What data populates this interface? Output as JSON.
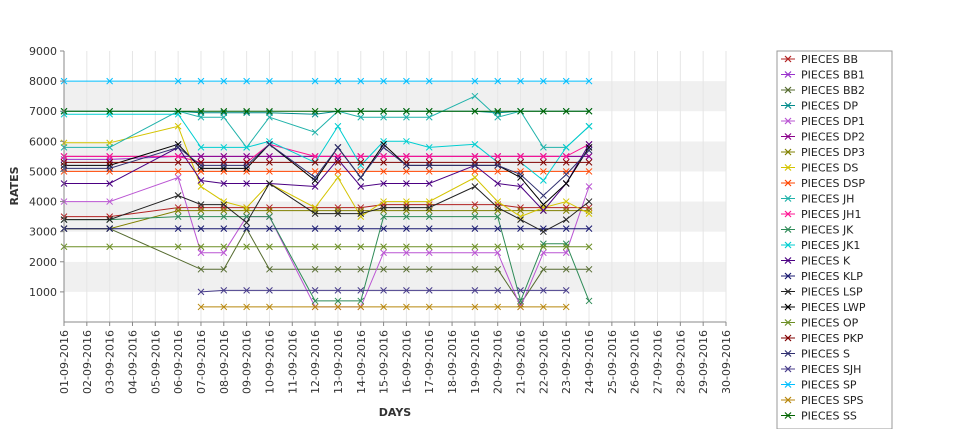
{
  "chart_data": {
    "type": "line",
    "xlabel": "DAYS",
    "ylabel": "RATES",
    "ylim": [
      0,
      9000
    ],
    "yticks": [
      1000,
      2000,
      3000,
      4000,
      5000,
      6000,
      7000,
      8000,
      9000
    ],
    "grid": "alternating horizontal bands",
    "legend_position": "right",
    "categories": [
      "01-09-2016",
      "02-09-2016",
      "03-09-2016",
      "04-09-2016",
      "05-09-2016",
      "06-09-2016",
      "07-09-2016",
      "08-09-2016",
      "09-09-2016",
      "10-09-2016",
      "11-09-2016",
      "12-09-2016",
      "13-09-2016",
      "14-09-2016",
      "15-09-2016",
      "16-09-2016",
      "17-09-2016",
      "18-09-2016",
      "19-09-2016",
      "20-09-2016",
      "21-09-2016",
      "22-09-2016",
      "23-09-2016",
      "24-09-2016",
      "25-09-2016",
      "26-09-2016",
      "27-09-2016",
      "28-09-2016",
      "29-09-2016",
      "30-09-2016"
    ],
    "series": [
      {
        "name": "PIECES BB",
        "color": "#b22222",
        "x": [
          1,
          3,
          6,
          7,
          8,
          9,
          10,
          12,
          13,
          14,
          15,
          16,
          17,
          19,
          20,
          21,
          22,
          23,
          24
        ],
        "values": [
          3500,
          3500,
          3800,
          3800,
          3800,
          3800,
          3800,
          3800,
          3800,
          3800,
          3900,
          3900,
          3900,
          3900,
          3900,
          3800,
          3800,
          3800,
          3800
        ]
      },
      {
        "name": "PIECES BB1",
        "color": "#9932cc",
        "x": [
          1,
          3,
          6,
          7,
          8,
          9,
          10,
          12,
          13,
          14,
          15,
          16,
          17,
          19,
          20,
          21,
          22,
          23,
          24
        ],
        "values": [
          5400,
          5400,
          5500,
          5500,
          5500,
          5500,
          5500,
          5500,
          5500,
          5500,
          5500,
          5500,
          5500,
          5500,
          5500,
          5500,
          5500,
          5500,
          5500
        ]
      },
      {
        "name": "PIECES BB2",
        "color": "#556b2f",
        "x": [
          1,
          3,
          7,
          8,
          9,
          10,
          12,
          13,
          14,
          15,
          16,
          17,
          19,
          20,
          21,
          22,
          23,
          24
        ],
        "values": [
          3100,
          3100,
          1750,
          1750,
          3100,
          1750,
          1750,
          1750,
          1750,
          1750,
          1750,
          1750,
          1750,
          1750,
          600,
          1750,
          1750,
          1750
        ]
      },
      {
        "name": "PIECES DP",
        "color": "#008b8b",
        "x": [
          1,
          3,
          6,
          7,
          8,
          9,
          10,
          12,
          13,
          14,
          15,
          16,
          17,
          19,
          20,
          21,
          22,
          23,
          24
        ],
        "values": [
          7000,
          7000,
          7000,
          6950,
          6950,
          6950,
          6950,
          6900,
          7000,
          7000,
          7000,
          7000,
          7000,
          7000,
          6950,
          7000,
          7000,
          7000,
          7000
        ]
      },
      {
        "name": "PIECES DP1",
        "color": "#ba55d3",
        "x": [
          1,
          3,
          6,
          7,
          8,
          9,
          10,
          12,
          13,
          14,
          15,
          16,
          17,
          19,
          20,
          21,
          22,
          23,
          24
        ],
        "values": [
          4000,
          4000,
          4800,
          2300,
          2300,
          3500,
          3500,
          500,
          500,
          500,
          2300,
          2300,
          2300,
          2300,
          2300,
          500,
          2300,
          2300,
          4500
        ]
      },
      {
        "name": "PIECES DP2",
        "color": "#8b008b",
        "x": [
          1,
          3,
          6,
          7,
          8,
          9,
          10,
          12,
          13,
          14,
          15,
          16,
          17,
          19,
          20,
          21,
          22,
          23,
          24
        ],
        "values": [
          5500,
          5500,
          5500,
          5500,
          5500,
          5500,
          5500,
          5500,
          5500,
          5500,
          5500,
          5500,
          5500,
          5500,
          5500,
          5500,
          5500,
          5500,
          5500
        ]
      },
      {
        "name": "PIECES DP3",
        "color": "#808000",
        "x": [
          1,
          3,
          6,
          7,
          8,
          9,
          10,
          12,
          13,
          14,
          15,
          16,
          17,
          19,
          20,
          21,
          22,
          23,
          24
        ],
        "values": [
          3100,
          3100,
          3700,
          3700,
          3700,
          3700,
          3700,
          3700,
          3700,
          3700,
          3700,
          3700,
          3700,
          3700,
          3700,
          3700,
          3700,
          3700,
          3700
        ]
      },
      {
        "name": "PIECES DS",
        "color": "#d4c400",
        "x": [
          1,
          3,
          6,
          7,
          8,
          9,
          10,
          12,
          13,
          14,
          15,
          16,
          17,
          19,
          20,
          21,
          22,
          23,
          24
        ],
        "values": [
          5950,
          5950,
          6500,
          4500,
          4000,
          3800,
          4600,
          3800,
          4800,
          3500,
          4000,
          4000,
          4000,
          4800,
          4000,
          3500,
          3800,
          4000,
          3600
        ]
      },
      {
        "name": "PIECES DSP",
        "color": "#ff4500",
        "x": [
          1,
          3,
          6,
          7,
          8,
          9,
          10,
          12,
          13,
          14,
          15,
          16,
          17,
          19,
          20,
          21,
          22,
          23,
          24
        ],
        "values": [
          5000,
          5000,
          5000,
          5000,
          5000,
          5000,
          5000,
          5000,
          5000,
          5000,
          5000,
          5000,
          5000,
          5000,
          5000,
          5000,
          5000,
          5000,
          5000
        ]
      },
      {
        "name": "PIECES JH",
        "color": "#20b2aa",
        "x": [
          1,
          3,
          6,
          7,
          8,
          9,
          10,
          12,
          13,
          14,
          15,
          16,
          17,
          19,
          20,
          21,
          22,
          23,
          24
        ],
        "values": [
          5800,
          5800,
          7000,
          6800,
          6800,
          5800,
          6800,
          6300,
          7000,
          6800,
          6800,
          6800,
          6800,
          7500,
          6800,
          7000,
          5800,
          5800,
          6500
        ]
      },
      {
        "name": "PIECES JH1",
        "color": "#ff1493",
        "x": [
          1,
          3,
          6,
          7,
          8,
          9,
          10,
          12,
          13,
          14,
          15,
          16,
          17,
          19,
          20,
          21,
          22,
          23,
          24
        ],
        "values": [
          5500,
          5500,
          5500,
          5300,
          5300,
          5300,
          5900,
          5500,
          5500,
          5500,
          5500,
          5500,
          5500,
          5500,
          5500,
          5500,
          5500,
          5500,
          5900
        ]
      },
      {
        "name": "PIECES JK",
        "color": "#2e8b57",
        "x": [
          1,
          3,
          6,
          7,
          8,
          9,
          10,
          12,
          13,
          14,
          15,
          16,
          17,
          19,
          20,
          21,
          22,
          23,
          24
        ],
        "values": [
          3400,
          3400,
          3500,
          3500,
          3500,
          3500,
          3500,
          700,
          700,
          700,
          3500,
          3500,
          3500,
          3500,
          3500,
          700,
          2600,
          2600,
          700
        ]
      },
      {
        "name": "PIECES JK1",
        "color": "#00ced1",
        "x": [
          1,
          3,
          6,
          7,
          8,
          9,
          10,
          12,
          13,
          14,
          15,
          16,
          17,
          19,
          20,
          21,
          22,
          23,
          24
        ],
        "values": [
          6900,
          6900,
          6900,
          5800,
          5800,
          5800,
          6000,
          5300,
          6500,
          5200,
          6000,
          6000,
          5800,
          5900,
          5300,
          5300,
          4700,
          5800,
          6500
        ]
      },
      {
        "name": "PIECES K",
        "color": "#4b0082",
        "x": [
          1,
          3,
          6,
          7,
          8,
          9,
          10,
          12,
          13,
          14,
          15,
          16,
          17,
          19,
          20,
          21,
          22,
          23,
          24
        ],
        "values": [
          4600,
          4600,
          5800,
          4700,
          4600,
          4600,
          4600,
          4500,
          5400,
          4500,
          4600,
          4600,
          4600,
          5200,
          4600,
          4500,
          3700,
          4600,
          5900
        ]
      },
      {
        "name": "PIECES KLP",
        "color": "#191970",
        "x": [
          1,
          3,
          6,
          7,
          8,
          9,
          10,
          12,
          13,
          14,
          15,
          16,
          17,
          19,
          20,
          21,
          22,
          23,
          24
        ],
        "values": [
          3100,
          3100,
          3100,
          3100,
          3100,
          3100,
          3100,
          3100,
          3100,
          3100,
          3100,
          3100,
          3100,
          3100,
          3100,
          3100,
          3100,
          3100,
          3100
        ]
      },
      {
        "name": "PIECES LSP",
        "color": "#222222",
        "x": [
          1,
          3,
          6,
          7,
          8,
          9,
          10,
          12,
          13,
          14,
          15,
          16,
          17,
          19,
          20,
          21,
          22,
          23,
          24
        ],
        "values": [
          3400,
          3400,
          4200,
          3900,
          3900,
          3300,
          4600,
          3600,
          3600,
          3600,
          3800,
          3800,
          3800,
          4500,
          3800,
          3400,
          3000,
          3400,
          4000
        ]
      },
      {
        "name": "PIECES LWP",
        "color": "#000000",
        "x": [
          1,
          3,
          6,
          7,
          8,
          9,
          10,
          12,
          13,
          14,
          15,
          16,
          17,
          19,
          20,
          21,
          22,
          23,
          24
        ],
        "values": [
          5200,
          5200,
          5900,
          5100,
          5100,
          5100,
          5900,
          4700,
          5800,
          4800,
          5900,
          5200,
          5200,
          5200,
          5200,
          4800,
          3900,
          4600,
          5800
        ]
      },
      {
        "name": "PIECES OP",
        "color": "#6b8e23",
        "x": [
          1,
          3,
          6,
          7,
          8,
          9,
          10,
          12,
          13,
          14,
          15,
          16,
          17,
          19,
          20,
          21,
          22,
          23,
          24
        ],
        "values": [
          2500,
          2500,
          2500,
          2500,
          2500,
          2500,
          2500,
          2500,
          2500,
          2500,
          2500,
          2500,
          2500,
          2500,
          2500,
          2500,
          2500,
          2500,
          2500
        ]
      },
      {
        "name": "PIECES PKP",
        "color": "#800000",
        "x": [
          1,
          3,
          6,
          7,
          8,
          9,
          10,
          12,
          13,
          14,
          15,
          16,
          17,
          19,
          20,
          21,
          22,
          23,
          24
        ],
        "values": [
          5300,
          5300,
          5300,
          5300,
          5300,
          5300,
          5300,
          5300,
          5300,
          5300,
          5300,
          5300,
          5300,
          5300,
          5300,
          5300,
          5300,
          5300,
          5300
        ]
      },
      {
        "name": "PIECES S",
        "color": "#2f2f6f",
        "x": [
          1,
          3,
          6,
          7,
          8,
          9,
          10,
          12,
          13,
          14,
          15,
          16,
          17,
          19,
          20,
          21,
          22,
          23,
          24
        ],
        "values": [
          5100,
          5100,
          5800,
          5200,
          5200,
          5200,
          5900,
          4800,
          5800,
          4800,
          5800,
          5200,
          5200,
          5200,
          5200,
          4900,
          4200,
          4900,
          5700
        ]
      },
      {
        "name": "PIECES SJH",
        "color": "#483d8b",
        "x": [
          7,
          8,
          9,
          10,
          12,
          13,
          14,
          15,
          16,
          17,
          19,
          20,
          21,
          22,
          23
        ],
        "values": [
          1000,
          1050,
          1050,
          1050,
          1050,
          1050,
          1050,
          1050,
          1050,
          1050,
          1050,
          1050,
          1050,
          1050,
          1050
        ]
      },
      {
        "name": "PIECES SP",
        "color": "#00bfff",
        "x": [
          1,
          3,
          6,
          7,
          8,
          9,
          10,
          12,
          13,
          14,
          15,
          16,
          17,
          19,
          20,
          21,
          22,
          23,
          24
        ],
        "values": [
          8000,
          8000,
          8000,
          8000,
          8000,
          8000,
          8000,
          8000,
          8000,
          8000,
          8000,
          8000,
          8000,
          8000,
          8000,
          8000,
          8000,
          8000,
          8000
        ]
      },
      {
        "name": "PIECES SPS",
        "color": "#b8860b",
        "x": [
          7,
          8,
          9,
          10,
          12,
          13,
          14,
          15,
          16,
          17,
          19,
          20,
          21,
          22,
          23
        ],
        "values": [
          500,
          500,
          500,
          500,
          500,
          500,
          500,
          500,
          500,
          500,
          500,
          500,
          500,
          500,
          500
        ]
      },
      {
        "name": "PIECES SS",
        "color": "#006400",
        "x": [
          1,
          3,
          6,
          7,
          8,
          9,
          10,
          12,
          13,
          14,
          15,
          16,
          17,
          19,
          20,
          21,
          22,
          23,
          24
        ],
        "values": [
          7000,
          7000,
          7000,
          7000,
          7000,
          7000,
          7000,
          7000,
          7000,
          7000,
          7000,
          7000,
          7000,
          7000,
          7000,
          7000,
          7000,
          7000,
          7000
        ]
      }
    ]
  }
}
